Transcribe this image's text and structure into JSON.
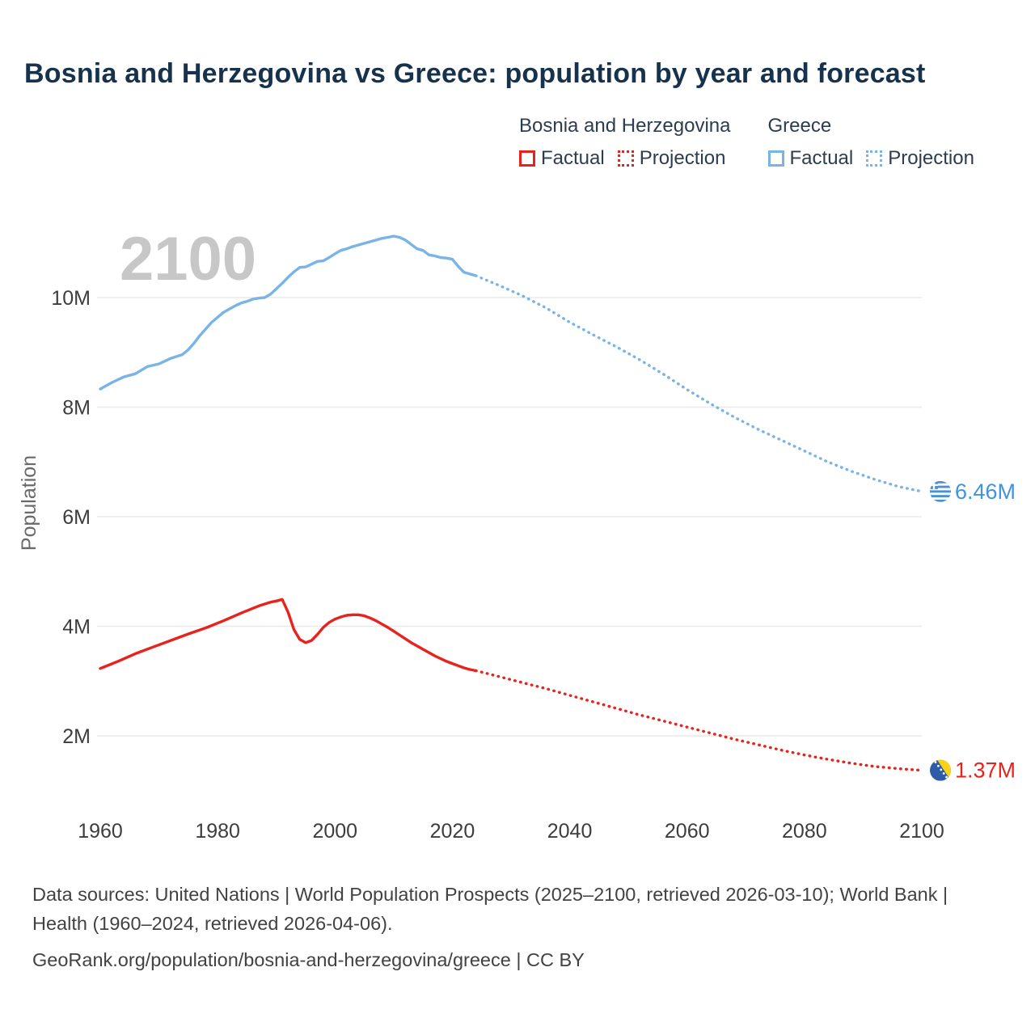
{
  "title": "Bosnia and Herzegovina vs Greece: population by year and forecast",
  "watermark": "2100",
  "legend": {
    "groups": [
      {
        "name": "Bosnia and Herzegovina",
        "color": "#e8231d",
        "items": [
          {
            "label": "Factual",
            "style": "solid"
          },
          {
            "label": "Projection",
            "style": "dotted"
          }
        ]
      },
      {
        "name": "Greece",
        "color": "#79b4e6",
        "items": [
          {
            "label": "Factual",
            "style": "solid"
          },
          {
            "label": "Projection",
            "style": "dotted"
          }
        ]
      }
    ]
  },
  "footer": {
    "sources": "Data sources: United Nations | World Population Prospects (2025–2100, retrieved 2026-03-10); World Bank | Health (1960–2024, retrieved 2026-04-06).",
    "link": "GeoRank.org/population/bosnia-and-herzegovina/greece | CC BY"
  },
  "chart_data": {
    "type": "line",
    "title": "Bosnia and Herzegovina vs Greece: population by year and forecast",
    "xlabel": "",
    "ylabel": "Population",
    "grid": "horizontal",
    "legend_position": "top-right",
    "xlim": [
      1957,
      2112
    ],
    "ylim_millions": [
      0.9,
      11.6
    ],
    "x_ticks": [
      {
        "value": 1960,
        "label": "1960"
      },
      {
        "value": 1980,
        "label": "1980"
      },
      {
        "value": 2000,
        "label": "2000"
      },
      {
        "value": 2020,
        "label": "2020"
      },
      {
        "value": 2040,
        "label": "2040"
      },
      {
        "value": 2060,
        "label": "2060"
      },
      {
        "value": 2080,
        "label": "2080"
      },
      {
        "value": 2100,
        "label": "2100"
      }
    ],
    "y_ticks": [
      {
        "value": 2,
        "label": "2M"
      },
      {
        "value": 4,
        "label": "4M"
      },
      {
        "value": 6,
        "label": "6M"
      },
      {
        "value": 8,
        "label": "8M"
      },
      {
        "value": 10,
        "label": "10M"
      }
    ],
    "series": [
      {
        "id": "greece",
        "name": "Greece",
        "color": "#79b4e6",
        "label_color": "#3f94e0",
        "end_label": "6.46M",
        "flag": "greece",
        "factual": {
          "x": [
            1960,
            1962,
            1964,
            1966,
            1968,
            1970,
            1972,
            1974,
            1975,
            1976,
            1977,
            1978,
            1979,
            1980,
            1981,
            1982,
            1983,
            1984,
            1985,
            1986,
            1987,
            1988,
            1989,
            1990,
            1991,
            1992,
            1993,
            1994,
            1995,
            1996,
            1997,
            1998,
            1999,
            2000,
            2001,
            2002,
            2003,
            2004,
            2005,
            2006,
            2007,
            2008,
            2009,
            2010,
            2011,
            2012,
            2013,
            2014,
            2015,
            2016,
            2017,
            2018,
            2019,
            2020,
            2021,
            2022,
            2023,
            2024
          ],
          "y": [
            8.33,
            8.45,
            8.55,
            8.61,
            8.74,
            8.79,
            8.89,
            8.96,
            9.05,
            9.17,
            9.31,
            9.43,
            9.55,
            9.64,
            9.73,
            9.79,
            9.85,
            9.9,
            9.93,
            9.97,
            9.99,
            10.0,
            10.06,
            10.16,
            10.26,
            10.37,
            10.47,
            10.55,
            10.56,
            10.61,
            10.66,
            10.67,
            10.73,
            10.8,
            10.86,
            10.89,
            10.93,
            10.96,
            10.99,
            11.02,
            11.05,
            11.08,
            11.1,
            11.12,
            11.1,
            11.05,
            10.97,
            10.89,
            10.86,
            10.78,
            10.76,
            10.73,
            10.72,
            10.7,
            10.57,
            10.46,
            10.43,
            10.4
          ]
        },
        "projection": {
          "x": [
            2024,
            2028,
            2032,
            2036,
            2040,
            2044,
            2048,
            2052,
            2056,
            2060,
            2064,
            2068,
            2072,
            2076,
            2080,
            2084,
            2088,
            2092,
            2096,
            2100
          ],
          "y": [
            10.4,
            10.22,
            10.03,
            9.81,
            9.55,
            9.32,
            9.1,
            8.86,
            8.6,
            8.32,
            8.06,
            7.82,
            7.6,
            7.4,
            7.2,
            7.0,
            6.83,
            6.68,
            6.55,
            6.46
          ]
        }
      },
      {
        "id": "bosnia",
        "name": "Bosnia and Herzegovina",
        "color": "#e8231d",
        "label_color": "#e8231d",
        "end_label": "1.37M",
        "flag": "bosnia",
        "factual": {
          "x": [
            1960,
            1963,
            1966,
            1969,
            1972,
            1975,
            1978,
            1981,
            1984,
            1987,
            1989,
            1990,
            1991,
            1992,
            1993,
            1994,
            1995,
            1996,
            1997,
            1998,
            1999,
            2000,
            2001,
            2002,
            2003,
            2004,
            2005,
            2006,
            2007,
            2008,
            2009,
            2010,
            2011,
            2012,
            2013,
            2014,
            2015,
            2016,
            2017,
            2018,
            2019,
            2020,
            2021,
            2022,
            2023,
            2024
          ],
          "y": [
            3.23,
            3.36,
            3.5,
            3.62,
            3.74,
            3.86,
            3.97,
            4.1,
            4.24,
            4.37,
            4.44,
            4.46,
            4.49,
            4.26,
            3.94,
            3.76,
            3.7,
            3.74,
            3.85,
            3.98,
            4.07,
            4.13,
            4.17,
            4.2,
            4.21,
            4.21,
            4.19,
            4.15,
            4.1,
            4.04,
            3.98,
            3.91,
            3.84,
            3.77,
            3.7,
            3.64,
            3.58,
            3.52,
            3.46,
            3.41,
            3.36,
            3.32,
            3.28,
            3.24,
            3.21,
            3.19
          ]
        },
        "projection": {
          "x": [
            2024,
            2028,
            2032,
            2036,
            2040,
            2044,
            2048,
            2052,
            2056,
            2060,
            2064,
            2068,
            2072,
            2076,
            2080,
            2084,
            2088,
            2092,
            2096,
            2100
          ],
          "y": [
            3.19,
            3.08,
            2.97,
            2.86,
            2.74,
            2.62,
            2.5,
            2.38,
            2.27,
            2.16,
            2.05,
            1.94,
            1.84,
            1.74,
            1.65,
            1.57,
            1.5,
            1.44,
            1.4,
            1.37
          ]
        }
      }
    ]
  }
}
